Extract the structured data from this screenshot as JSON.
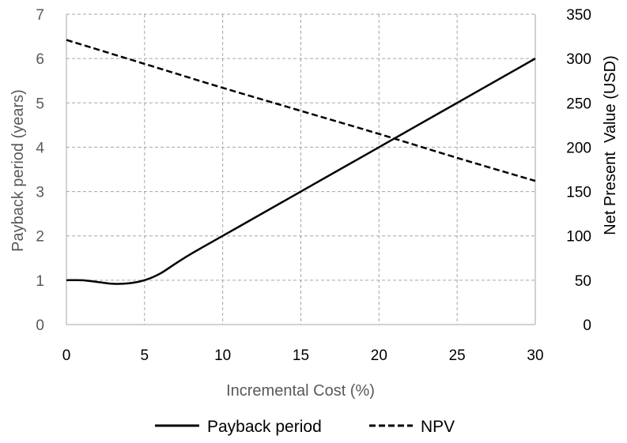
{
  "chart_data": {
    "type": "line",
    "title": "",
    "xlabel": "Incremental Cost (%)",
    "ylabel_left": "Payback period (years)",
    "ylabel_right": "Net Present  Value (USD)",
    "xlim": [
      0,
      30
    ],
    "ylim_left": [
      0,
      7
    ],
    "ylim_right": [
      0,
      350
    ],
    "x_ticks": [
      "0",
      "5",
      "10",
      "15",
      "20",
      "25",
      "30"
    ],
    "y_left_ticks": [
      "0",
      "1",
      "2",
      "3",
      "4",
      "5",
      "6",
      "7"
    ],
    "y_right_ticks": [
      "0",
      "50",
      "100",
      "150",
      "200",
      "250",
      "300",
      "350"
    ],
    "grid": true,
    "legend_position": "bottom",
    "series": [
      {
        "name": "Payback period",
        "axis": "left",
        "style": "solid",
        "x": [
          0,
          1,
          2,
          3,
          4,
          5,
          6,
          7,
          8,
          10,
          12,
          14,
          16,
          18,
          20,
          22,
          24,
          26,
          28,
          30
        ],
        "y": [
          1.0,
          1.0,
          0.96,
          0.92,
          0.93,
          1.0,
          1.15,
          1.38,
          1.6,
          2.0,
          2.4,
          2.8,
          3.2,
          3.6,
          4.0,
          4.4,
          4.8,
          5.2,
          5.6,
          6.0
        ]
      },
      {
        "name": "NPV",
        "axis": "right",
        "style": "dashed",
        "x": [
          0,
          5,
          10,
          15,
          20,
          25,
          30
        ],
        "y": [
          321,
          294,
          267,
          241,
          215,
          188,
          162
        ]
      }
    ],
    "colors": {
      "line": "#000000",
      "grid": "#a6a6a6",
      "axis_left_text": "#595959",
      "axis_right_text": "#000000"
    }
  }
}
